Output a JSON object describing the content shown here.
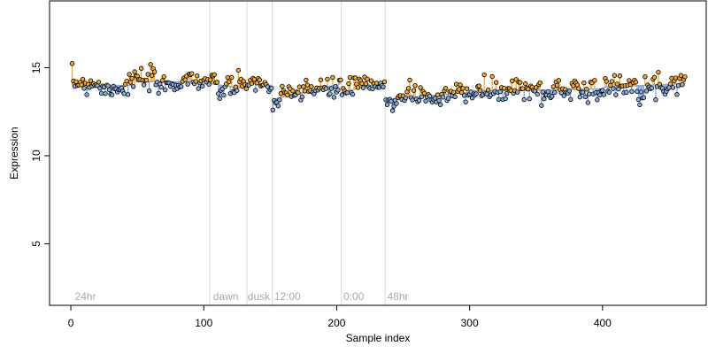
{
  "chart_data": {
    "type": "scatter",
    "title": "",
    "xlabel": "Sample index",
    "ylabel": "Expression",
    "xlim": [
      -16,
      478
    ],
    "ylim": [
      1.5,
      18.8
    ],
    "x_ticks": [
      0,
      100,
      200,
      300,
      400
    ],
    "y_ticks": [
      5,
      10,
      15
    ],
    "grid": false,
    "legend": "none",
    "colors": {
      "point_above": "#f5a623",
      "point_below": "#87aee0",
      "deviation_above": "#f0a030",
      "deviation_below": "#7c9fd4",
      "point_stroke": "#000000",
      "vline": "#d9d9d9",
      "annotation": "#aaaaaa"
    },
    "vertical_lines": [
      104.5,
      132.5,
      151.5,
      203.5,
      236.5
    ],
    "annotations": [
      {
        "label": "24hr",
        "x": 3,
        "y": 2.0
      },
      {
        "label": "dawn",
        "x": 107,
        "y": 2.0
      },
      {
        "label": "dusk",
        "x": 133,
        "y": 2.0
      },
      {
        "label": "12:00",
        "x": 153,
        "y": 2.0
      },
      {
        "label": "0:00",
        "x": 205,
        "y": 2.0
      },
      {
        "label": "48hr",
        "x": 238,
        "y": 2.0
      }
    ],
    "fit_segments": [
      {
        "x0": 1,
        "x1": 48,
        "y0": 14.0,
        "y1": 14.0
      },
      {
        "x0": 49,
        "x1": 104,
        "y0": 14.2,
        "y1": 14.2
      },
      {
        "x0": 105,
        "x1": 132,
        "y0": 14.1,
        "y1": 13.8
      },
      {
        "x0": 133,
        "x1": 151,
        "y0": 14.1,
        "y1": 14.0
      },
      {
        "x0": 152,
        "x1": 203,
        "y0": 13.2,
        "y1": 14.1
      },
      {
        "x0": 204,
        "x1": 236,
        "y0": 13.6,
        "y1": 14.2
      },
      {
        "x0": 237,
        "x1": 299,
        "y0": 13.2,
        "y1": 13.6
      },
      {
        "x0": 300,
        "x1": 340,
        "y0": 13.7,
        "y1": 13.7
      },
      {
        "x0": 341,
        "x1": 400,
        "y0": 13.7,
        "y1": 13.8
      },
      {
        "x0": 401,
        "x1": 462,
        "y0": 13.9,
        "y1": 14.1
      }
    ],
    "series_points": [],
    "n_points": 462,
    "noise_seed": 7,
    "noise_amplitude": 0.3
  }
}
